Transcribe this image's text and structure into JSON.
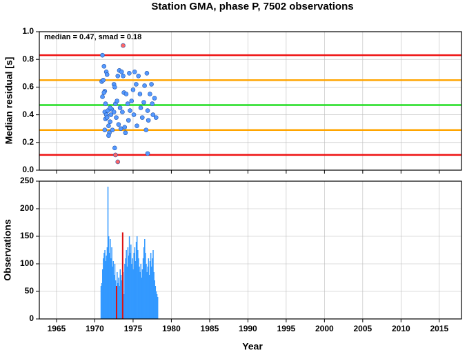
{
  "chart_data": [
    {
      "type": "scatter",
      "title": "Station GMA, phase P, 7502 observations",
      "ylabel": "Median residual [s]",
      "annotation": "median = 0.47, smad = 0.18",
      "xlim": [
        1962.75,
        2017.9
      ],
      "xticks": [
        1965,
        1970,
        1975,
        1980,
        1985,
        1990,
        1995,
        2000,
        2005,
        2010,
        2015
      ],
      "ylim": [
        0,
        1
      ],
      "yticks": [
        {
          "value": 0,
          "label": "0.0"
        },
        0.2,
        0.4,
        0.6,
        0.8,
        {
          "value": 1,
          "label": "1.0"
        }
      ],
      "grid": true,
      "hlines": [
        {
          "value": 0.83,
          "color": "#ee1111"
        },
        {
          "value": 0.65,
          "color": "#ffa500"
        },
        {
          "value": 0.47,
          "color": "#22dd22"
        },
        {
          "value": 0.29,
          "color": "#ffa500"
        },
        {
          "value": 0.11,
          "color": "#ee1111"
        }
      ],
      "series": [
        {
          "color": "#5599ff",
          "x": [
            1971.0,
            1971.2,
            1970.9,
            1971.1,
            1971.3,
            1971.5,
            1971.6,
            1971.2,
            1971.0,
            1971.4,
            1971.3,
            1971.5,
            1971.7,
            1971.4,
            1971.6,
            1971.3,
            1971.8,
            1971.9,
            1972.0,
            1971.8,
            1972.1,
            1972.2,
            1972.0,
            1972.3,
            1972.5,
            1972.6,
            1972.7,
            1972.5,
            1972.8,
            1972.9,
            1972.6,
            1973.2,
            1973.0,
            1973.3,
            1973.1,
            1973.4,
            1973.5,
            1973.7,
            1973.8,
            1973.6,
            1973.9,
            1974.0,
            1974.1,
            1974.3,
            1974.5,
            1974.6,
            1974.4,
            1974.8,
            1975.0,
            1975.1,
            1975.2,
            1975.4,
            1975.5,
            1975.7,
            1975.9,
            1976.0,
            1976.2,
            1976.4,
            1976.5,
            1976.7,
            1976.8,
            1976.9,
            1977.0,
            1977.2,
            1977.4,
            1977.5,
            1977.6,
            1977.8,
            1978.0,
            1976.9
          ],
          "values": [
            0.83,
            0.75,
            0.64,
            0.65,
            0.57,
            0.71,
            0.69,
            0.56,
            0.53,
            0.48,
            0.42,
            0.4,
            0.43,
            0.37,
            0.38,
            0.29,
            0.32,
            0.27,
            0.35,
            0.25,
            0.4,
            0.44,
            0.45,
            0.29,
            0.62,
            0.6,
            0.48,
            0.42,
            0.38,
            0.5,
            0.16,
            0.72,
            0.68,
            0.45,
            0.33,
            0.3,
            0.71,
            0.68,
            0.56,
            0.42,
            0.31,
            0.27,
            0.55,
            0.48,
            0.7,
            0.43,
            0.36,
            0.5,
            0.58,
            0.4,
            0.71,
            0.62,
            0.32,
            0.68,
            0.55,
            0.45,
            0.38,
            0.49,
            0.61,
            0.29,
            0.7,
            0.43,
            0.36,
            0.55,
            0.62,
            0.48,
            0.4,
            0.52,
            0.38,
            0.12
          ]
        },
        {
          "color": "#ff6666",
          "x": [
            1973.7,
            1972.7,
            1973.0
          ],
          "values": [
            0.9,
            0.11,
            0.06
          ]
        }
      ]
    },
    {
      "type": "bar",
      "ylabel": "Observations",
      "xlabel": "Year",
      "xlim": [
        1962.75,
        2017.9
      ],
      "xticks": [
        1965,
        1970,
        1975,
        1980,
        1985,
        1990,
        1995,
        2000,
        2005,
        2010,
        2015
      ],
      "ylim": [
        0,
        250
      ],
      "yticks": [
        0,
        50,
        100,
        150,
        200,
        250
      ],
      "grid": true,
      "bar_width": 0.1,
      "series": [
        {
          "color": "#3399ff",
          "x": [
            1970.8,
            1970.9,
            1971.0,
            1971.1,
            1971.2,
            1971.3,
            1971.4,
            1971.5,
            1971.6,
            1971.7,
            1971.8,
            1971.9,
            1972.0,
            1972.1,
            1972.2,
            1972.3,
            1972.4,
            1972.5,
            1972.6,
            1972.7,
            1972.8,
            1972.9,
            1973.0,
            1973.1,
            1973.2,
            1973.3,
            1973.4,
            1973.5,
            1973.6,
            1973.7,
            1973.8,
            1973.9,
            1974.0,
            1974.1,
            1974.2,
            1974.3,
            1974.4,
            1974.5,
            1974.6,
            1974.7,
            1974.8,
            1974.9,
            1975.0,
            1975.1,
            1975.2,
            1975.3,
            1975.4,
            1975.5,
            1975.6,
            1975.7,
            1975.8,
            1975.9,
            1976.0,
            1976.1,
            1976.2,
            1976.3,
            1976.4,
            1976.5,
            1976.6,
            1976.7,
            1976.8,
            1976.9,
            1977.0,
            1977.1,
            1977.2,
            1977.3,
            1977.4,
            1977.5,
            1977.6,
            1977.7,
            1977.8,
            1977.9,
            1978.0,
            1978.1,
            1978.2
          ],
          "values": [
            60,
            65,
            90,
            110,
            120,
            125,
            105,
            115,
            130,
            240,
            150,
            120,
            145,
            110,
            130,
            95,
            105,
            80,
            100,
            70,
            55,
            85,
            65,
            75,
            60,
            90,
            80,
            70,
            50,
            85,
            45,
            100,
            110,
            125,
            95,
            130,
            115,
            150,
            120,
            135,
            100,
            110,
            90,
            120,
            130,
            105,
            140,
            150,
            125,
            110,
            95,
            85,
            100,
            75,
            90,
            110,
            130,
            145,
            120,
            100,
            85,
            95,
            110,
            80,
            105,
            120,
            95,
            110,
            125,
            85,
            70,
            60,
            50,
            45,
            40
          ]
        },
        {
          "color": "#dd1111",
          "x": [
            1972.8,
            1973.6
          ],
          "values": [
            60,
            157
          ]
        }
      ]
    }
  ]
}
